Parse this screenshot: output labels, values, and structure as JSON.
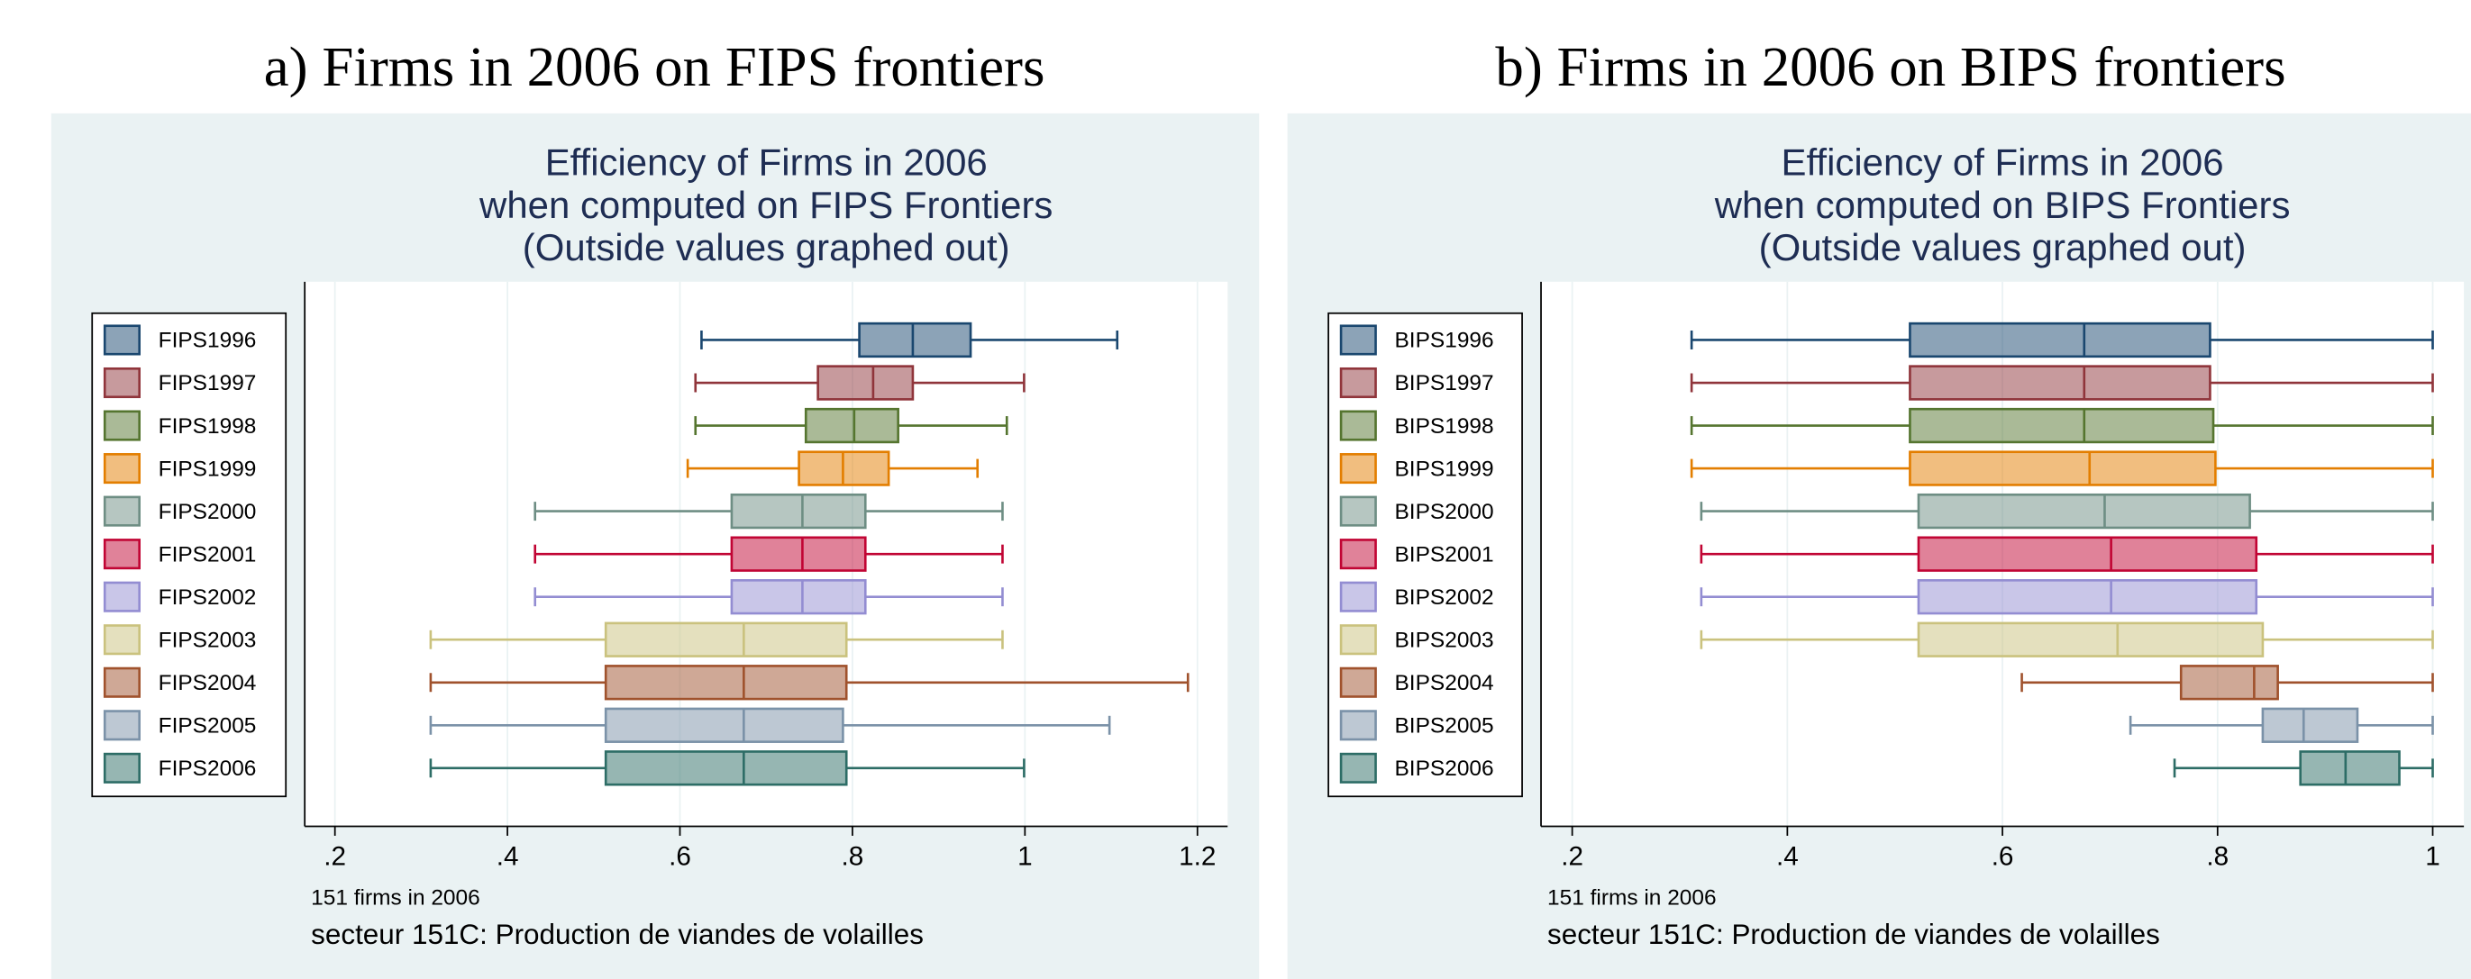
{
  "chart_data": [
    {
      "type": "box",
      "panel_title": "a) Firms in 2006 on FIPS frontiers",
      "title": [
        "Efficiency of Firms in 2006",
        "when computed on FIPS Frontiers",
        "(Outside values graphed out)"
      ],
      "notes": [
        "151 firms in 2006",
        "secteur 151C: Production de viandes de volailles"
      ],
      "xlim": [
        0.165,
        1.235
      ],
      "xticks": [
        {
          "value": 0.2,
          "label": ".2"
        },
        {
          "value": 0.4,
          "label": ".4"
        },
        {
          "value": 0.6,
          "label": ".6"
        },
        {
          "value": 0.8,
          "label": ".8"
        },
        1,
        {
          "value": 1.2,
          "label": "1.2"
        }
      ],
      "grid": true,
      "series": [
        {
          "name": "FIPS1996",
          "color": "#1a476f",
          "min": 0.625,
          "q1": 0.808,
          "median": 0.87,
          "q3": 0.937,
          "max": 1.107
        },
        {
          "name": "FIPS1997",
          "color": "#90353b",
          "min": 0.618,
          "q1": 0.76,
          "median": 0.824,
          "q3": 0.87,
          "max": 0.999
        },
        {
          "name": "FIPS1998",
          "color": "#55752f",
          "min": 0.618,
          "q1": 0.746,
          "median": 0.802,
          "q3": 0.853,
          "max": 0.979
        },
        {
          "name": "FIPS1999",
          "color": "#e37e00",
          "min": 0.609,
          "q1": 0.738,
          "median": 0.789,
          "q3": 0.842,
          "max": 0.945
        },
        {
          "name": "FIPS2000",
          "color": "#6e8e84",
          "min": 0.432,
          "q1": 0.66,
          "median": 0.742,
          "q3": 0.815,
          "max": 0.974
        },
        {
          "name": "FIPS2001",
          "color": "#c10534",
          "min": 0.432,
          "q1": 0.66,
          "median": 0.742,
          "q3": 0.815,
          "max": 0.974
        },
        {
          "name": "FIPS2002",
          "color": "#938dd2",
          "min": 0.432,
          "q1": 0.66,
          "median": 0.742,
          "q3": 0.815,
          "max": 0.974
        },
        {
          "name": "FIPS2003",
          "color": "#cac27e",
          "min": 0.311,
          "q1": 0.514,
          "median": 0.674,
          "q3": 0.793,
          "max": 0.974
        },
        {
          "name": "FIPS2004",
          "color": "#a0522d",
          "min": 0.311,
          "q1": 0.514,
          "median": 0.674,
          "q3": 0.793,
          "max": 1.189
        },
        {
          "name": "FIPS2005",
          "color": "#7b92a8",
          "min": 0.311,
          "q1": 0.514,
          "median": 0.674,
          "q3": 0.789,
          "max": 1.098
        },
        {
          "name": "FIPS2006",
          "color": "#2d6d66",
          "min": 0.311,
          "q1": 0.514,
          "median": 0.674,
          "q3": 0.793,
          "max": 0.999
        }
      ]
    },
    {
      "type": "box",
      "panel_title": "b) Firms in 2006 on BIPS frontiers",
      "title": [
        "Efficiency of Firms in 2006",
        "when computed on BIPS Frontiers",
        "(Outside values graphed out)"
      ],
      "notes": [
        "151 firms in 2006",
        "secteur 151C: Production de viandes de volailles"
      ],
      "xlim": [
        0.171,
        1.029
      ],
      "xticks": [
        {
          "value": 0.2,
          "label": ".2"
        },
        {
          "value": 0.4,
          "label": ".4"
        },
        {
          "value": 0.6,
          "label": ".6"
        },
        {
          "value": 0.8,
          "label": ".8"
        },
        1
      ],
      "grid": true,
      "series": [
        {
          "name": "BIPS1996",
          "color": "#1a476f",
          "min": 0.311,
          "q1": 0.514,
          "median": 0.676,
          "q3": 0.793,
          "max": 1
        },
        {
          "name": "BIPS1997",
          "color": "#90353b",
          "min": 0.311,
          "q1": 0.514,
          "median": 0.676,
          "q3": 0.793,
          "max": 1
        },
        {
          "name": "BIPS1998",
          "color": "#55752f",
          "min": 0.311,
          "q1": 0.514,
          "median": 0.676,
          "q3": 0.796,
          "max": 1
        },
        {
          "name": "BIPS1999",
          "color": "#e37e00",
          "min": 0.311,
          "q1": 0.514,
          "median": 0.681,
          "q3": 0.798,
          "max": 1
        },
        {
          "name": "BIPS2000",
          "color": "#6e8e84",
          "min": 0.32,
          "q1": 0.522,
          "median": 0.695,
          "q3": 0.83,
          "max": 1
        },
        {
          "name": "BIPS2001",
          "color": "#c10534",
          "min": 0.32,
          "q1": 0.522,
          "median": 0.701,
          "q3": 0.836,
          "max": 1
        },
        {
          "name": "BIPS2002",
          "color": "#938dd2",
          "min": 0.32,
          "q1": 0.522,
          "median": 0.701,
          "q3": 0.836,
          "max": 1
        },
        {
          "name": "BIPS2003",
          "color": "#cac27e",
          "min": 0.32,
          "q1": 0.522,
          "median": 0.707,
          "q3": 0.842,
          "max": 1
        },
        {
          "name": "BIPS2004",
          "color": "#a0522d",
          "min": 0.618,
          "q1": 0.766,
          "median": 0.834,
          "q3": 0.856,
          "max": 1
        },
        {
          "name": "BIPS2005",
          "color": "#7b92a8",
          "min": 0.719,
          "q1": 0.842,
          "median": 0.88,
          "q3": 0.93,
          "max": 1
        },
        {
          "name": "BIPS2006",
          "color": "#2d6d66",
          "min": 0.76,
          "q1": 0.877,
          "median": 0.919,
          "q3": 0.969,
          "max": 1
        }
      ]
    }
  ]
}
